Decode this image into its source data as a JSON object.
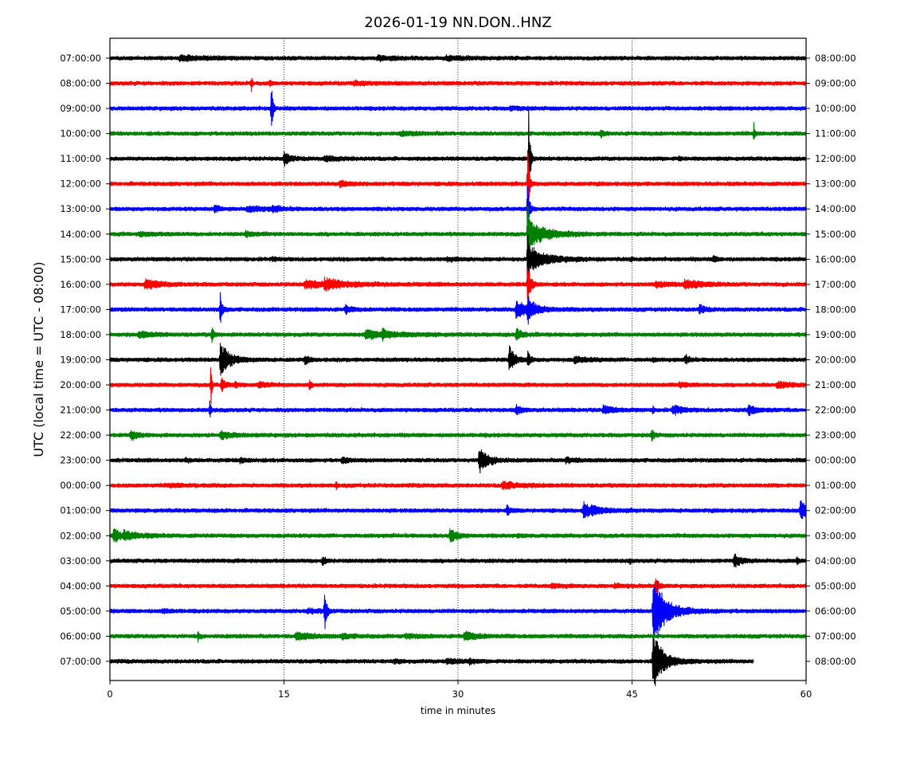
{
  "chart_data": {
    "type": "line",
    "title": "2026-01-19 NN.DON..HNZ",
    "xlabel": "time in minutes",
    "ylabel": "UTC (local time = UTC - 08:00)",
    "xlim": [
      0,
      60
    ],
    "x_ticks": [
      0,
      15,
      30,
      45,
      60
    ],
    "x_tick_labels": [
      "0",
      "15",
      "30",
      "45",
      "60"
    ],
    "grid": "vertical dotted at 15, 30, 45",
    "rows": [
      {
        "left": "07:00:00",
        "right": "08:00:00",
        "color": "#000000",
        "end_minute": 60,
        "events": [
          [
            6.0,
            0.7,
            2.5
          ],
          [
            29.0,
            0.5,
            2.0
          ],
          [
            23.0,
            0.6,
            1.6
          ]
        ]
      },
      {
        "left": "08:00:00",
        "right": "09:00:00",
        "color": "#ff0000",
        "end_minute": 60,
        "events": [
          [
            12.2,
            4.0,
            0.05
          ],
          [
            13.8,
            1.2,
            0.1
          ],
          [
            21.0,
            0.5,
            1.5
          ]
        ]
      },
      {
        "left": "09:00:00",
        "right": "10:00:00",
        "color": "#0000ff",
        "end_minute": 60,
        "events": [
          [
            13.9,
            10.0,
            0.12
          ],
          [
            34.5,
            0.5,
            1.0
          ]
        ]
      },
      {
        "left": "10:00:00",
        "right": "11:00:00",
        "color": "#008000",
        "end_minute": 60,
        "events": [
          [
            42.3,
            1.2,
            0.2
          ],
          [
            55.5,
            3.5,
            0.08
          ],
          [
            25.0,
            0.5,
            1.4
          ]
        ]
      },
      {
        "left": "11:00:00",
        "right": "12:00:00",
        "color": "#000000",
        "end_minute": 60,
        "events": [
          [
            15.0,
            2.5,
            0.4
          ],
          [
            18.5,
            0.7,
            1.2
          ],
          [
            36.1,
            18.0,
            0.12
          ],
          [
            49.0,
            0.6,
            0.2
          ]
        ]
      },
      {
        "left": "12:00:00",
        "right": "13:00:00",
        "color": "#ff0000",
        "end_minute": 60,
        "events": [
          [
            19.8,
            1.0,
            0.6
          ],
          [
            36.0,
            16.0,
            0.12
          ]
        ]
      },
      {
        "left": "13:00:00",
        "right": "14:00:00",
        "color": "#0000ff",
        "end_minute": 60,
        "events": [
          [
            9.0,
            1.0,
            0.5
          ],
          [
            11.8,
            0.8,
            1.5
          ],
          [
            14.0,
            0.8,
            0.6
          ],
          [
            36.0,
            14.0,
            0.12
          ]
        ]
      },
      {
        "left": "14:00:00",
        "right": "15:00:00",
        "color": "#008000",
        "end_minute": 60,
        "events": [
          [
            2.5,
            0.6,
            1.2
          ],
          [
            11.7,
            0.8,
            0.6
          ],
          [
            36.0,
            12.0,
            0.12
          ],
          [
            36.1,
            4.0,
            1.6
          ]
        ]
      },
      {
        "left": "15:00:00",
        "right": "16:00:00",
        "color": "#000000",
        "end_minute": 60,
        "events": [
          [
            36.0,
            12.0,
            0.2
          ],
          [
            36.4,
            3.0,
            1.5
          ],
          [
            29.0,
            0.5,
            1.0
          ],
          [
            44.9,
            0.8,
            0.1
          ],
          [
            52.0,
            1.0,
            0.3
          ],
          [
            14.0,
            0.5,
            0.3
          ]
        ]
      },
      {
        "left": "16:00:00",
        "right": "17:00:00",
        "color": "#ff0000",
        "end_minute": 60,
        "events": [
          [
            3.0,
            1.5,
            1.2
          ],
          [
            16.8,
            1.1,
            3.5
          ],
          [
            18.5,
            1.4,
            1.0
          ],
          [
            36.0,
            7.0,
            0.25
          ],
          [
            47.0,
            0.7,
            1.5
          ],
          [
            49.5,
            1.4,
            1.3
          ]
        ]
      },
      {
        "left": "17:00:00",
        "right": "18:00:00",
        "color": "#0000ff",
        "end_minute": 60,
        "events": [
          [
            9.5,
            6.0,
            0.15
          ],
          [
            20.3,
            1.6,
            0.4
          ],
          [
            35.0,
            2.5,
            1.5
          ],
          [
            36.0,
            4.0,
            0.4
          ],
          [
            50.8,
            1.4,
            0.4
          ]
        ]
      },
      {
        "left": "18:00:00",
        "right": "19:00:00",
        "color": "#008000",
        "end_minute": 60,
        "events": [
          [
            2.5,
            1.0,
            1.0
          ],
          [
            8.8,
            4.0,
            0.1
          ],
          [
            22.0,
            1.3,
            2.5
          ],
          [
            23.5,
            1.3,
            0.3
          ],
          [
            35.0,
            1.8,
            0.6
          ]
        ]
      },
      {
        "left": "19:00:00",
        "right": "20:00:00",
        "color": "#000000",
        "end_minute": 60,
        "events": [
          [
            9.5,
            5.5,
            0.8
          ],
          [
            16.8,
            1.2,
            0.3
          ],
          [
            34.4,
            5.0,
            0.4
          ],
          [
            36.0,
            3.0,
            0.2
          ],
          [
            40.0,
            1.0,
            1.0
          ],
          [
            46.8,
            0.9,
            0.15
          ],
          [
            49.6,
            1.6,
            0.3
          ]
        ]
      },
      {
        "left": "20:00:00",
        "right": "21:00:00",
        "color": "#ff0000",
        "end_minute": 60,
        "events": [
          [
            8.7,
            8.0,
            0.08
          ],
          [
            9.6,
            2.5,
            0.3
          ],
          [
            10.8,
            0.8,
            0.3
          ],
          [
            12.8,
            1.0,
            0.6
          ],
          [
            17.2,
            2.0,
            0.12
          ],
          [
            49.0,
            0.6,
            1.0
          ],
          [
            57.5,
            0.8,
            1.4
          ]
        ]
      },
      {
        "left": "21:00:00",
        "right": "22:00:00",
        "color": "#0000ff",
        "end_minute": 60,
        "events": [
          [
            8.6,
            3.0,
            0.1
          ],
          [
            35.0,
            1.5,
            0.4
          ],
          [
            42.5,
            1.3,
            0.9
          ],
          [
            48.5,
            1.6,
            0.7
          ],
          [
            55.0,
            1.5,
            0.7
          ],
          [
            46.8,
            1.2,
            0.1
          ]
        ]
      },
      {
        "left": "22:00:00",
        "right": "23:00:00",
        "color": "#008000",
        "end_minute": 60,
        "events": [
          [
            1.8,
            1.8,
            0.5
          ],
          [
            9.5,
            1.2,
            1.0
          ],
          [
            46.7,
            3.0,
            0.15
          ]
        ]
      },
      {
        "left": "23:00:00",
        "right": "00:00:00",
        "color": "#000000",
        "end_minute": 60,
        "events": [
          [
            31.8,
            4.5,
            0.7
          ],
          [
            20.0,
            1.0,
            0.5
          ],
          [
            39.3,
            0.8,
            0.8
          ],
          [
            11.2,
            0.8,
            0.5
          ],
          [
            6.5,
            0.6,
            0.3
          ]
        ]
      },
      {
        "left": "00:00:00",
        "right": "01:00:00",
        "color": "#ff0000",
        "end_minute": 60,
        "events": [
          [
            33.8,
            1.1,
            1.5
          ],
          [
            19.5,
            1.3,
            0.08
          ],
          [
            5.0,
            0.4,
            1.5
          ]
        ]
      },
      {
        "left": "01:00:00",
        "right": "02:00:00",
        "color": "#0000ff",
        "end_minute": 60,
        "events": [
          [
            34.2,
            1.5,
            0.3
          ],
          [
            40.8,
            3.5,
            0.5
          ],
          [
            59.5,
            3.0,
            0.8
          ],
          [
            41.5,
            0.8,
            1.5
          ]
        ]
      },
      {
        "left": "02:00:00",
        "right": "03:00:00",
        "color": "#008000",
        "end_minute": 60,
        "events": [
          [
            0.3,
            2.5,
            0.6
          ],
          [
            1.2,
            1.0,
            1.5
          ],
          [
            29.3,
            2.5,
            0.5
          ],
          [
            35.2,
            0.5,
            0.3
          ]
        ]
      },
      {
        "left": "03:00:00",
        "right": "04:00:00",
        "color": "#000000",
        "end_minute": 60,
        "events": [
          [
            18.3,
            1.4,
            0.3
          ],
          [
            53.8,
            2.5,
            0.5
          ],
          [
            59.2,
            1.2,
            0.2
          ],
          [
            44.8,
            0.8,
            0.1
          ]
        ]
      },
      {
        "left": "04:00:00",
        "right": "05:00:00",
        "color": "#ff0000",
        "end_minute": 60,
        "events": [
          [
            38.0,
            0.5,
            1.2
          ],
          [
            43.5,
            0.5,
            1.0
          ],
          [
            47.0,
            4.0,
            0.2
          ]
        ]
      },
      {
        "left": "05:00:00",
        "right": "06:00:00",
        "color": "#0000ff",
        "end_minute": 60,
        "events": [
          [
            18.5,
            8.0,
            0.15
          ],
          [
            46.8,
            14.0,
            0.5
          ],
          [
            47.2,
            4.0,
            1.5
          ],
          [
            4.5,
            0.6,
            0.6
          ],
          [
            17.0,
            0.6,
            1.0
          ]
        ]
      },
      {
        "left": "06:00:00",
        "right": "07:00:00",
        "color": "#008000",
        "end_minute": 60,
        "events": [
          [
            7.6,
            2.5,
            0.1
          ],
          [
            16.0,
            1.2,
            1.3
          ],
          [
            30.5,
            1.4,
            1.0
          ],
          [
            20.0,
            0.6,
            1.0
          ],
          [
            25.5,
            0.6,
            1.0
          ]
        ]
      },
      {
        "left": "07:00:00",
        "right": "08:00:00",
        "color": "#000000",
        "end_minute": 55.5,
        "events": [
          [
            46.8,
            10.0,
            0.5
          ],
          [
            47.0,
            3.0,
            1.2
          ],
          [
            29.0,
            0.8,
            1.2
          ],
          [
            31.0,
            0.8,
            0.3
          ],
          [
            24.5,
            0.6,
            0.5
          ]
        ]
      }
    ]
  }
}
